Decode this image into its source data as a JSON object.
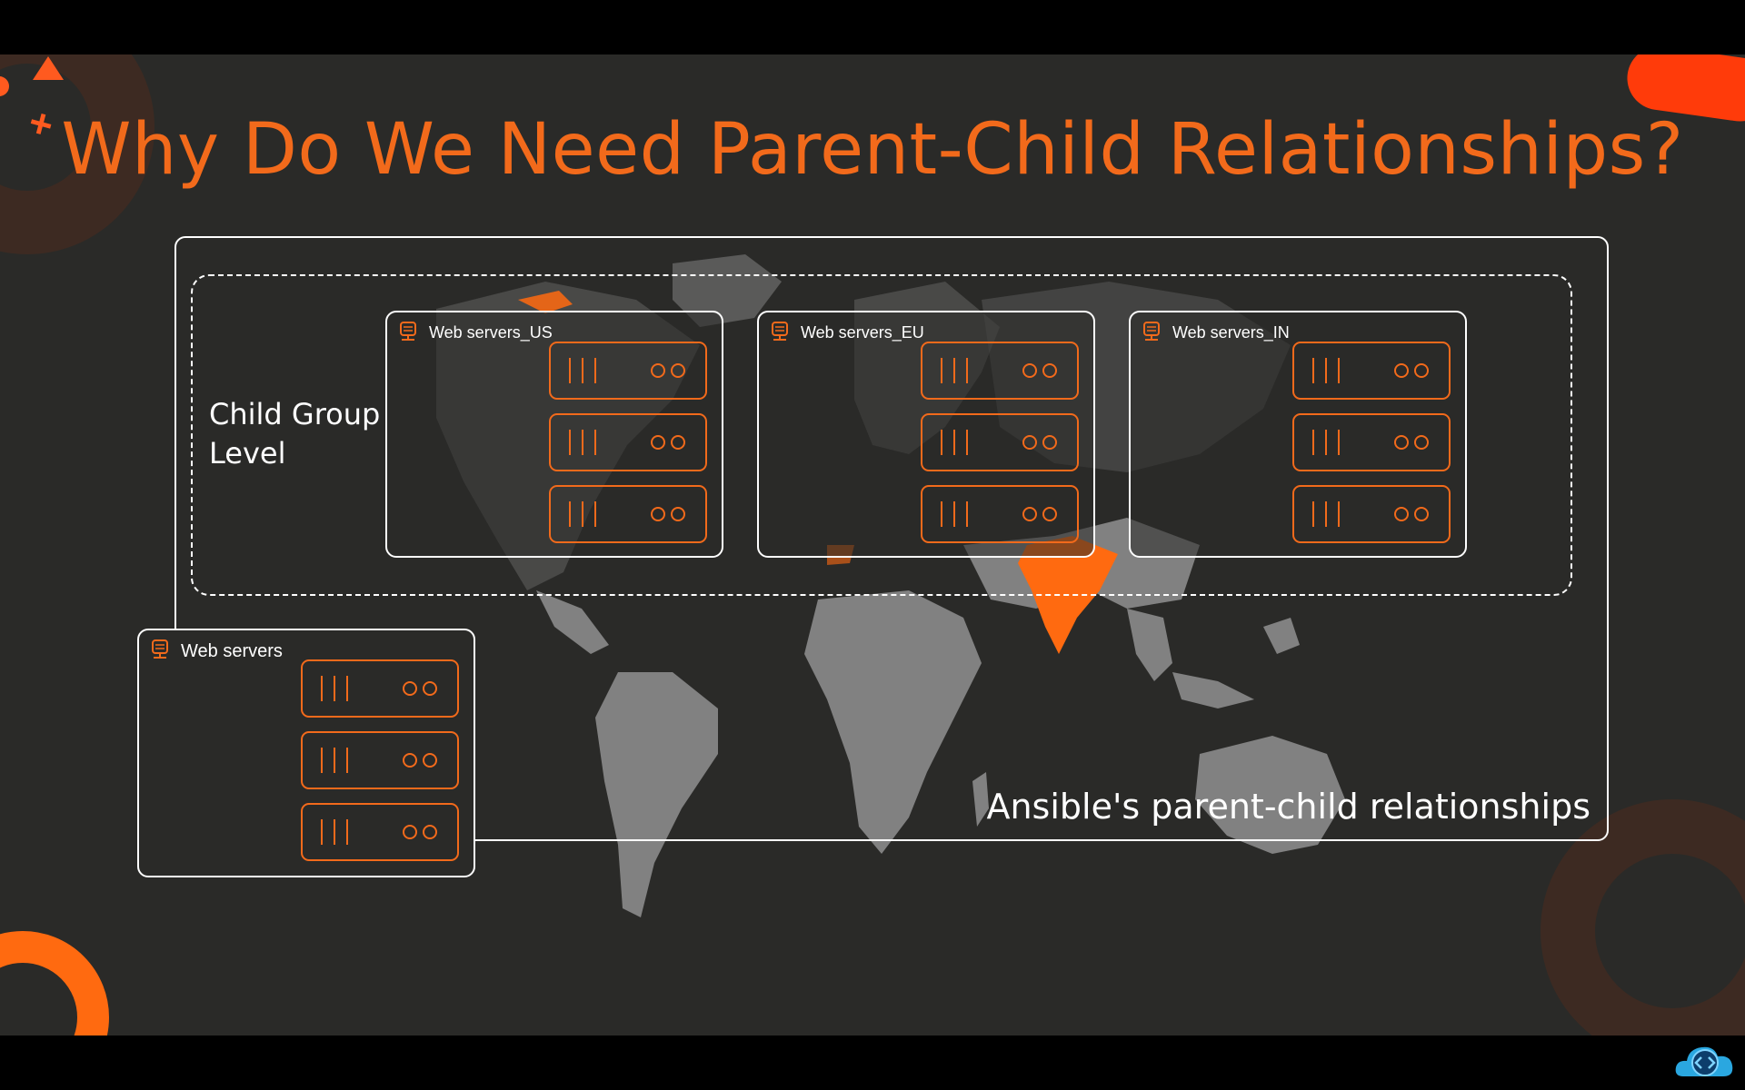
{
  "title": "Why Do We Need Parent-Child Relationships?",
  "child_level_label": "Child Group Level",
  "caption": "Ansible's parent-child relationships",
  "groups": [
    {
      "label": "Web servers_US",
      "servers": 3
    },
    {
      "label": "Web servers_EU",
      "servers": 3
    },
    {
      "label": "Web servers_IN",
      "servers": 3
    }
  ],
  "parent_group": {
    "label": "Web servers",
    "servers": 3
  },
  "colors": {
    "accent": "#f26a1b",
    "background": "#2a2a28",
    "map": "#8c8c8c",
    "highlight": "#ff6a10"
  },
  "icons": {
    "group": "server-rack-icon",
    "server": "server-icon",
    "logo": "cloud-code-logo"
  }
}
